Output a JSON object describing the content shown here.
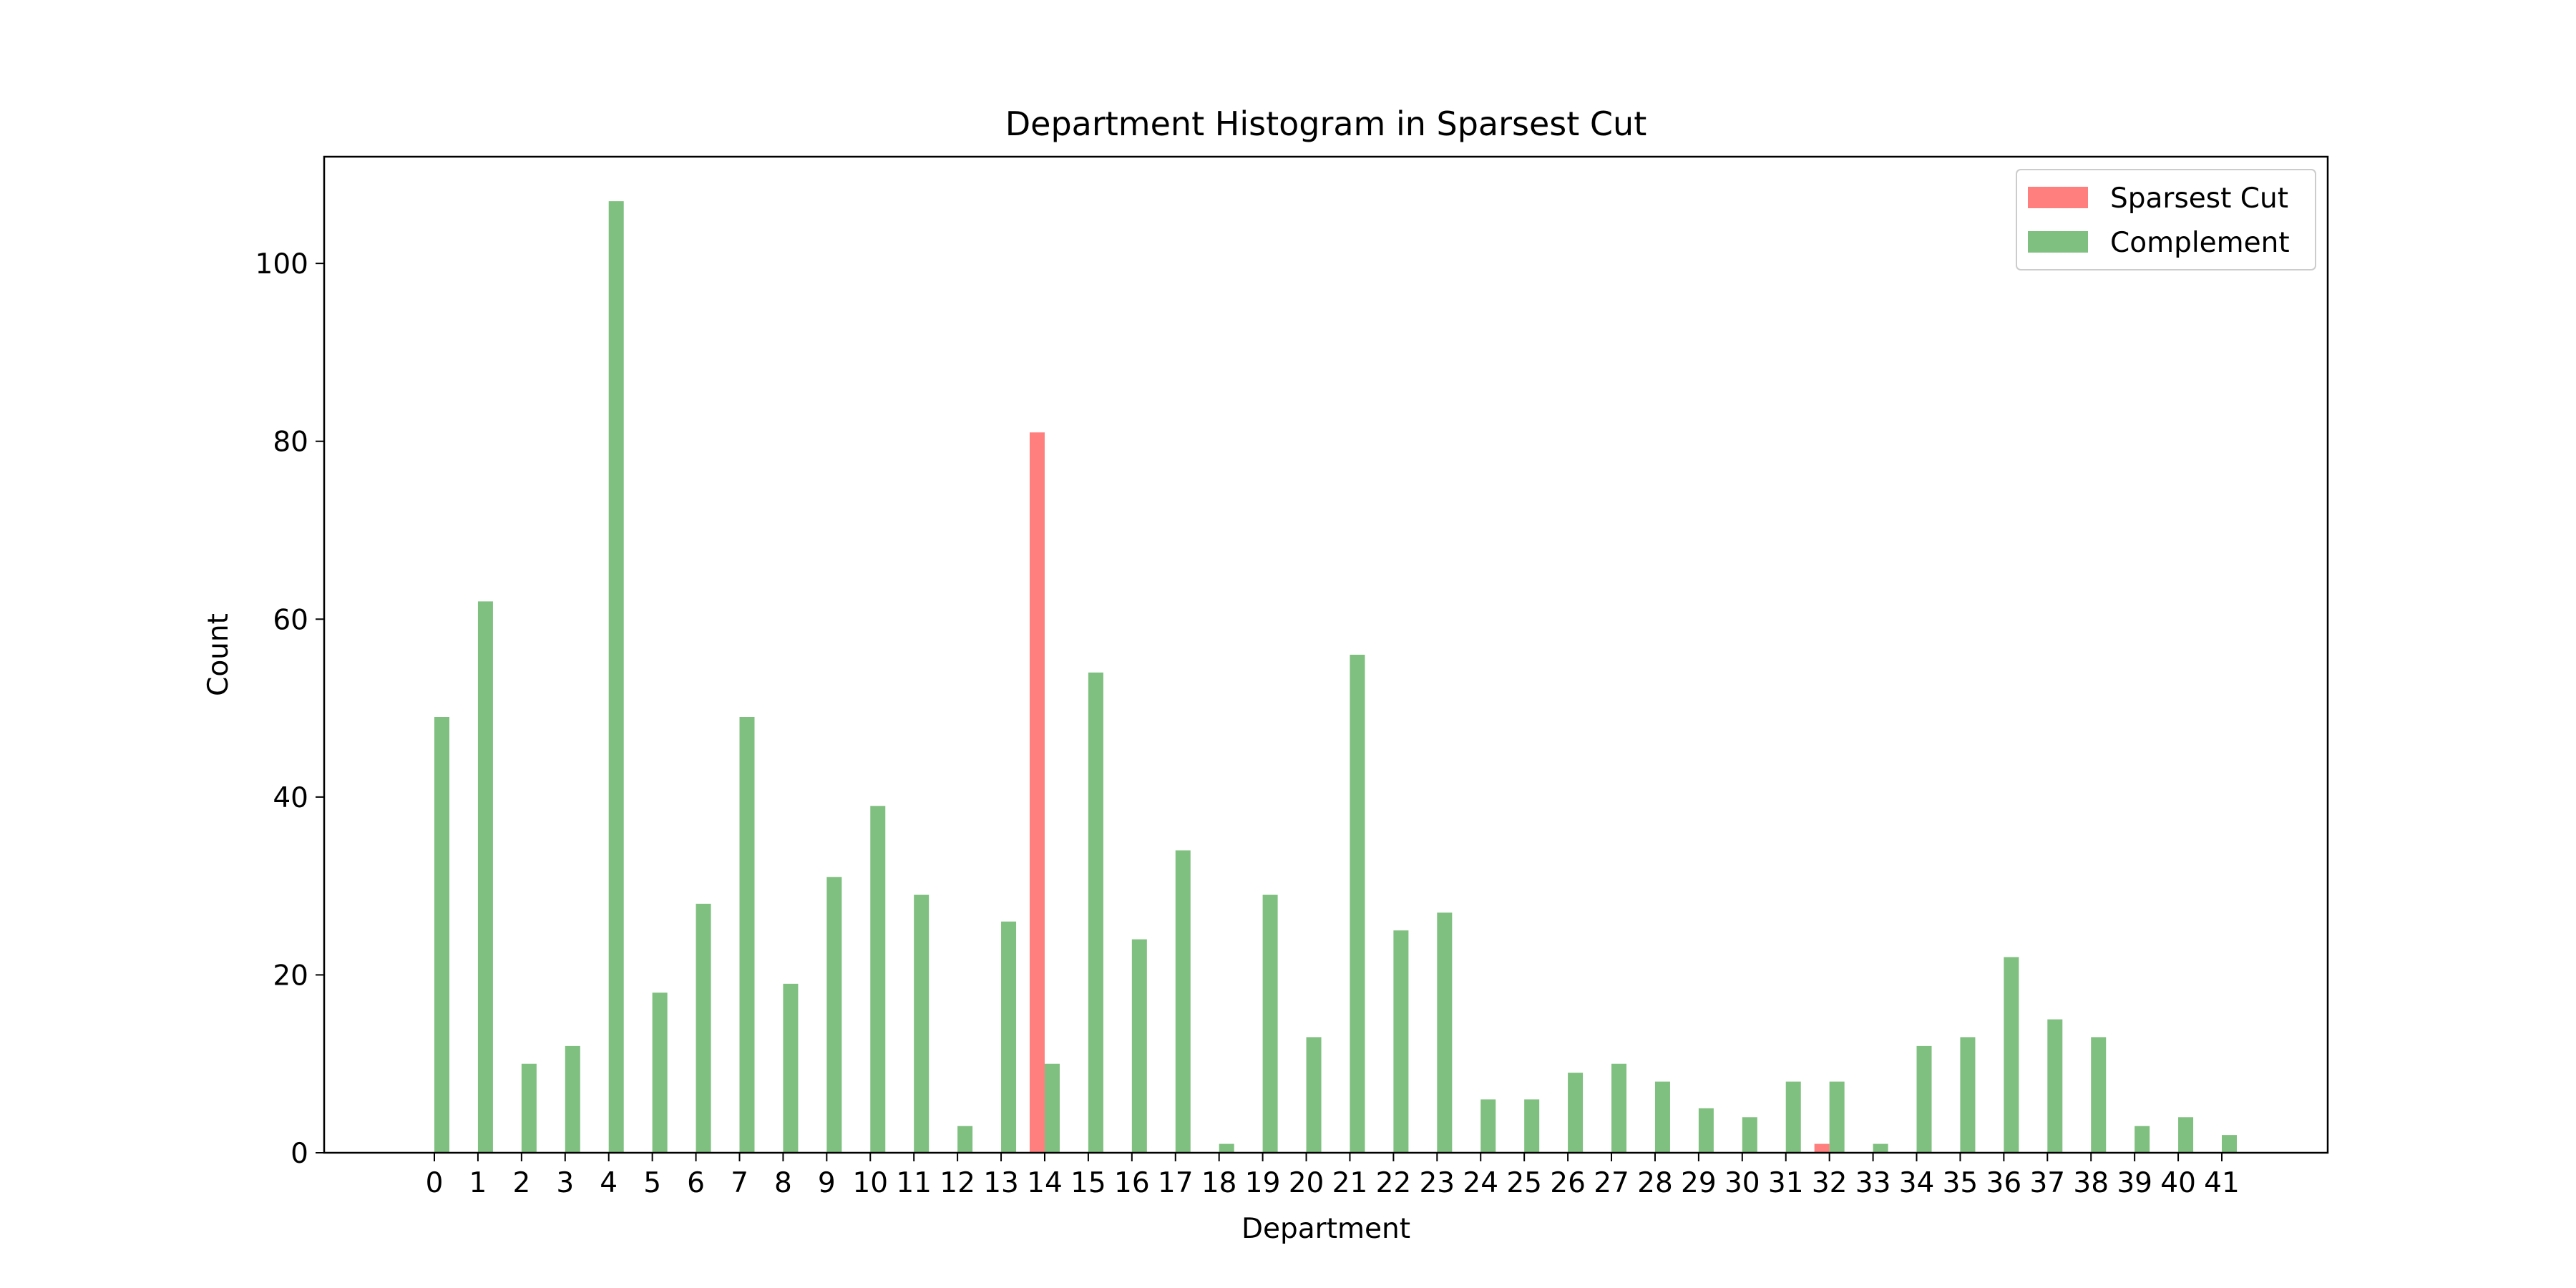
{
  "chart_data": {
    "type": "bar",
    "title": "Department Histogram in Sparsest Cut",
    "xlabel": "Department",
    "ylabel": "Count",
    "categories": [
      0,
      1,
      2,
      3,
      4,
      5,
      6,
      7,
      8,
      9,
      10,
      11,
      12,
      13,
      14,
      15,
      16,
      17,
      18,
      19,
      20,
      21,
      22,
      23,
      24,
      25,
      26,
      27,
      28,
      29,
      30,
      31,
      32,
      33,
      34,
      35,
      36,
      37,
      38,
      39,
      40,
      41
    ],
    "ylim": [
      0,
      112
    ],
    "yticks": [
      0,
      20,
      40,
      60,
      80,
      100
    ],
    "grid": false,
    "legend_position": "top-right",
    "series": [
      {
        "name": "Sparsest Cut",
        "color": "#ff7f7f",
        "values": [
          0,
          0,
          0,
          0,
          0,
          0,
          0,
          0,
          0,
          0,
          0,
          0,
          0,
          0,
          81,
          0,
          0,
          0,
          0,
          0,
          0,
          0,
          0,
          0,
          0,
          0,
          0,
          0,
          0,
          0,
          0,
          0,
          1,
          0,
          0,
          0,
          0,
          0,
          0,
          0,
          0,
          0
        ]
      },
      {
        "name": "Complement",
        "color": "#7fbf7f",
        "values": [
          49,
          62,
          10,
          12,
          107,
          18,
          28,
          49,
          19,
          31,
          39,
          29,
          3,
          26,
          10,
          54,
          24,
          34,
          1,
          29,
          13,
          56,
          25,
          27,
          6,
          6,
          9,
          10,
          8,
          5,
          4,
          8,
          8,
          1,
          12,
          13,
          22,
          15,
          13,
          3,
          4,
          2
        ]
      }
    ]
  }
}
